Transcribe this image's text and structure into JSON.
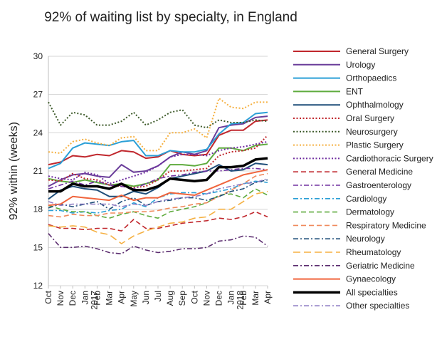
{
  "chart_data": {
    "type": "line",
    "title": "92% of waiting list by specialty, in England",
    "xlabel": "",
    "ylabel": "92% within (weeks)",
    "ylim": [
      12,
      30
    ],
    "yticks": [
      12,
      15,
      18,
      21,
      24,
      27,
      30
    ],
    "grid": "horizontal",
    "legend": "right",
    "x": [
      "Oct",
      "Nov",
      "Dec",
      "Jan 2017",
      "Feb",
      "Mar",
      "Apr",
      "May",
      "Jun",
      "Jul",
      "Aug",
      "Sep",
      "Oct",
      "Nov",
      "Dec",
      "Jan 2018",
      "Feb",
      "Mar",
      "Apr"
    ],
    "x_tick_labels": [
      {
        "line1": "Oct",
        "line2": ""
      },
      {
        "line1": "Nov",
        "line2": ""
      },
      {
        "line1": "Dec",
        "line2": ""
      },
      {
        "line1": "Jan",
        "line2": "2017"
      },
      {
        "line1": "Feb",
        "line2": ""
      },
      {
        "line1": "Mar",
        "line2": ""
      },
      {
        "line1": "Apr",
        "line2": ""
      },
      {
        "line1": "May",
        "line2": ""
      },
      {
        "line1": "Jun",
        "line2": ""
      },
      {
        "line1": "Jul",
        "line2": ""
      },
      {
        "line1": "Aug",
        "line2": ""
      },
      {
        "line1": "Sep",
        "line2": ""
      },
      {
        "line1": "Oct",
        "line2": ""
      },
      {
        "line1": "Nov",
        "line2": ""
      },
      {
        "line1": "Dec",
        "line2": ""
      },
      {
        "line1": "Jan",
        "line2": "2018"
      },
      {
        "line1": "Feb",
        "line2": ""
      },
      {
        "line1": "Mar",
        "line2": ""
      },
      {
        "line1": "Apr",
        "line2": ""
      }
    ],
    "series": [
      {
        "name": "General Surgery",
        "color": "#c0272d",
        "dash": "solid",
        "width": 2,
        "values": [
          21.5,
          21.7,
          22.2,
          22.1,
          22.3,
          22.2,
          22.6,
          22.5,
          22.0,
          22.1,
          22.6,
          22.3,
          22.2,
          22.3,
          23.8,
          24.2,
          24.2,
          24.9,
          25.0
        ]
      },
      {
        "name": "Urology",
        "color": "#6a3d9a",
        "dash": "solid",
        "width": 2,
        "values": [
          19.8,
          20.3,
          20.7,
          20.8,
          20.6,
          20.5,
          21.5,
          20.9,
          21.0,
          21.4,
          22.1,
          22.5,
          22.3,
          22.6,
          24.4,
          24.6,
          24.7,
          25.2,
          25.3
        ]
      },
      {
        "name": "Orthopaedics",
        "color": "#2a9fd6",
        "dash": "solid",
        "width": 2,
        "values": [
          21.2,
          21.6,
          22.8,
          23.2,
          23.1,
          23.0,
          23.3,
          23.4,
          22.2,
          22.2,
          22.6,
          22.5,
          22.5,
          22.7,
          23.9,
          24.7,
          24.8,
          25.5,
          25.6
        ]
      },
      {
        "name": "ENT",
        "color": "#5fab3e",
        "dash": "solid",
        "width": 2,
        "values": [
          20.4,
          20.2,
          20.1,
          20.3,
          20.1,
          19.9,
          20.0,
          19.8,
          20.0,
          20.3,
          21.5,
          21.5,
          21.4,
          21.6,
          22.8,
          22.8,
          22.6,
          23.0,
          23.1
        ]
      },
      {
        "name": "Ophthalmology",
        "color": "#1f4e79",
        "dash": "solid",
        "width": 2,
        "values": [
          18.8,
          19.5,
          19.8,
          19.6,
          19.5,
          19.0,
          19.0,
          19.4,
          19.2,
          19.7,
          20.4,
          20.6,
          20.8,
          21.0,
          21.5,
          21.0,
          21.1,
          21.6,
          21.5
        ]
      },
      {
        "name": "Oral Surgery",
        "color": "#c0272d",
        "dash": "dot",
        "width": 2,
        "values": [
          20.3,
          20.2,
          20.8,
          20.4,
          20.3,
          19.9,
          19.8,
          19.7,
          19.8,
          20.3,
          21.0,
          21.0,
          21.1,
          21.2,
          22.2,
          22.5,
          22.6,
          22.8,
          23.8
        ]
      },
      {
        "name": "Neurosurgery",
        "color": "#3d5a2a",
        "dash": "dot",
        "width": 2,
        "values": [
          26.4,
          24.6,
          25.6,
          25.4,
          24.6,
          24.6,
          24.9,
          25.6,
          24.6,
          25.0,
          25.6,
          25.8,
          24.6,
          24.4,
          25.0,
          24.8,
          24.8,
          25.0,
          24.9
        ]
      },
      {
        "name": "Plastic Surgery",
        "color": "#f5b041",
        "dash": "dot",
        "width": 2,
        "values": [
          22.5,
          22.4,
          23.3,
          23.5,
          23.2,
          23.0,
          23.6,
          23.7,
          22.6,
          22.6,
          24.0,
          24.0,
          24.3,
          23.6,
          26.7,
          26.0,
          25.9,
          26.4,
          26.4
        ]
      },
      {
        "name": "Cardiothoracic Surgery",
        "color": "#7030a0",
        "dash": "dot",
        "width": 2,
        "values": [
          20.6,
          20.4,
          20.3,
          20.9,
          20.7,
          20.0,
          20.3,
          20.6,
          20.9,
          21.4,
          22.1,
          22.3,
          22.3,
          22.2,
          22.6,
          22.8,
          22.9,
          23.1,
          23.3
        ]
      },
      {
        "name": "General Medicine",
        "color": "#c0272d",
        "dash": "dash",
        "width": 1.6,
        "values": [
          16.8,
          16.5,
          16.5,
          16.4,
          16.5,
          16.5,
          16.3,
          17.2,
          16.5,
          16.5,
          16.7,
          16.9,
          17.0,
          17.1,
          17.3,
          17.2,
          17.4,
          17.8,
          17.4
        ]
      },
      {
        "name": "Gastroenterology",
        "color": "#7030a0",
        "dash": "dashdot",
        "width": 1.6,
        "values": [
          19.6,
          19.9,
          20.2,
          19.9,
          20.2,
          19.9,
          19.8,
          19.6,
          20.0,
          20.4,
          20.6,
          20.7,
          20.9,
          21.0,
          21.0,
          21.1,
          21.2,
          21.2,
          21.1
        ]
      },
      {
        "name": "Cardiology",
        "color": "#2a9fd6",
        "dash": "dashdot",
        "width": 1.6,
        "values": [
          17.9,
          17.9,
          17.7,
          17.8,
          17.7,
          17.9,
          18.0,
          18.5,
          18.2,
          18.9,
          19.2,
          19.3,
          19.3,
          19.2,
          19.4,
          19.6,
          20.0,
          20.2,
          20.1
        ]
      },
      {
        "name": "Dermatology",
        "color": "#5fab3e",
        "dash": "dash",
        "width": 1.6,
        "values": [
          18.3,
          18.0,
          17.8,
          17.8,
          17.5,
          17.3,
          17.6,
          17.8,
          17.5,
          17.3,
          17.8,
          18.0,
          18.2,
          18.5,
          19.1,
          19.2,
          18.9,
          19.6,
          19.1
        ]
      },
      {
        "name": "Respiratory Medicine",
        "color": "#f08a5d",
        "dash": "dash",
        "width": 1.6,
        "values": [
          17.5,
          17.4,
          17.6,
          17.5,
          17.5,
          17.7,
          17.7,
          17.8,
          17.8,
          17.9,
          18.1,
          18.2,
          18.4,
          18.5,
          19.0,
          19.5,
          20.0,
          20.6,
          20.8
        ]
      },
      {
        "name": "Neurology",
        "color": "#1f4e79",
        "dash": "dashdot",
        "width": 1.6,
        "values": [
          18.1,
          18.4,
          18.2,
          18.4,
          18.6,
          18.0,
          18.6,
          18.9,
          18.3,
          18.6,
          18.7,
          18.9,
          18.9,
          18.7,
          19.0,
          19.4,
          19.6,
          20.1,
          20.3
        ]
      },
      {
        "name": "Rheumatology",
        "color": "#f5b041",
        "dash": "longdash",
        "width": 1.6,
        "values": [
          16.7,
          16.6,
          16.7,
          16.6,
          16.2,
          16.0,
          15.3,
          15.9,
          16.3,
          16.6,
          16.9,
          17.0,
          17.3,
          17.4,
          18.0,
          18.0,
          18.6,
          19.2,
          19.4
        ]
      },
      {
        "name": "Geriatric Medicine",
        "color": "#5b2c6f",
        "dash": "dashdot",
        "width": 1.6,
        "values": [
          16.1,
          15.0,
          15.0,
          15.1,
          14.9,
          14.6,
          14.5,
          15.1,
          14.8,
          14.6,
          14.7,
          14.9,
          14.9,
          15.0,
          15.5,
          15.6,
          15.9,
          15.8,
          15.1
        ]
      },
      {
        "name": "Gynaecology",
        "color": "#f0643c",
        "dash": "solid",
        "width": 2,
        "values": [
          18.3,
          18.4,
          19.0,
          18.9,
          18.8,
          18.7,
          19.1,
          18.7,
          18.9,
          18.9,
          19.3,
          19.2,
          19.1,
          19.5,
          19.9,
          20.3,
          20.7,
          20.9,
          21.1
        ]
      },
      {
        "name": "All specialties",
        "color": "#000000",
        "dash": "solid",
        "width": 3.5,
        "values": [
          19.4,
          19.4,
          20.0,
          19.8,
          19.8,
          19.6,
          20.0,
          19.5,
          19.5,
          19.8,
          20.4,
          20.3,
          20.2,
          20.3,
          21.3,
          21.3,
          21.4,
          21.9,
          22.0
        ]
      },
      {
        "name": "Other specialties",
        "color": "#8e7cc3",
        "dash": "dashdot",
        "width": 1.6,
        "values": [
          18.6,
          18.3,
          18.4,
          18.4,
          18.4,
          18.4,
          18.2,
          18.4,
          18.3,
          18.6,
          18.8,
          18.9,
          19.0,
          19.2,
          19.6,
          19.8,
          20.0,
          20.1,
          20.4
        ]
      }
    ]
  }
}
